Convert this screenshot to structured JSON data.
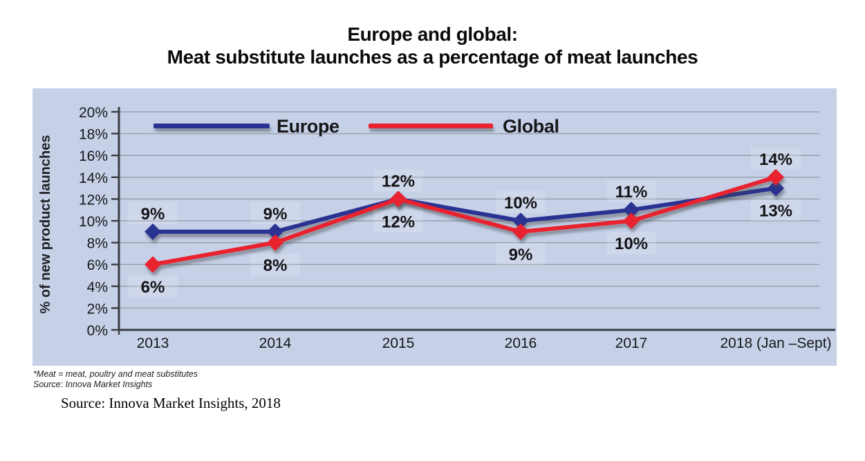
{
  "page": {
    "title_line1": "Europe and global:",
    "title_line2": "Meat substitute launches as a percentage of meat launches"
  },
  "chart_data": {
    "type": "line",
    "title": "Europe and global: Meat substitute launches as a percentage of meat launches",
    "ylabel": "% of new product launches",
    "xlabel": "",
    "ylim": [
      0,
      20
    ],
    "ytick_step": 2,
    "ytick_labels": [
      "0%",
      "2%",
      "4%",
      "6%",
      "8%",
      "10%",
      "12%",
      "14%",
      "16%",
      "18%",
      "20%"
    ],
    "grid": true,
    "legend_position": "top-inside",
    "categories": [
      "2013",
      "2014",
      "2015",
      "2016",
      "2017",
      "2018 (Jan –Sept)"
    ],
    "series": [
      {
        "name": "Europe",
        "color": "#2b3192",
        "marker": "diamond",
        "values": [
          9,
          9,
          12,
          10,
          11,
          13
        ],
        "data_labels": [
          "9%",
          "9%",
          "12%",
          "10%",
          "11%",
          "13%"
        ],
        "label_sides": [
          "above",
          "above",
          "above",
          "above",
          "above",
          "below"
        ]
      },
      {
        "name": "Global",
        "color": "#e8212d",
        "marker": "diamond",
        "values": [
          6,
          8,
          12,
          9,
          10,
          14
        ],
        "data_labels": [
          "6%",
          "8%",
          "12%",
          "9%",
          "10%",
          "14%"
        ],
        "label_sides": [
          "below",
          "below",
          "below",
          "below",
          "below",
          "above"
        ]
      }
    ]
  },
  "footnotes": {
    "note_line1": "*Meat = meat, poultry and meat substitutes",
    "note_line2": "Source: Innova Market Insights",
    "caption": "Source: Innova Market Insights, 2018"
  },
  "colors": {
    "panel_bg": "#c6d1e8",
    "gridline": "#98a0aa",
    "axis": "#3a3d42",
    "text": "#1b1b1e"
  }
}
